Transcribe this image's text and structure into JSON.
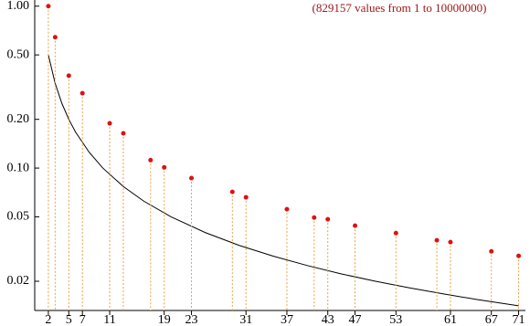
{
  "chart_data": {
    "type": "scatter",
    "annotation": "(829157 values from 1 to 10000000)",
    "log_y": true,
    "x": [
      2,
      3,
      5,
      7,
      11,
      13,
      17,
      19,
      23,
      29,
      31,
      37,
      41,
      43,
      47,
      53,
      59,
      61,
      67,
      71
    ],
    "values": [
      1.0,
      0.643,
      0.372,
      0.29,
      0.189,
      0.164,
      0.112,
      0.101,
      0.0867,
      0.0713,
      0.066,
      0.0557,
      0.0495,
      0.0483,
      0.0441,
      0.0397,
      0.0358,
      0.0349,
      0.0306,
      0.0287
    ],
    "color": "#e01010",
    "stem_color": "#f0a040",
    "curve": {
      "x": [
        2,
        3,
        4,
        5,
        6,
        8,
        10,
        13,
        16,
        20,
        25,
        30,
        35,
        40,
        45,
        50,
        55,
        60,
        65,
        71
      ],
      "values": [
        0.5,
        0.3333,
        0.25,
        0.2,
        0.1667,
        0.125,
        0.1,
        0.0769,
        0.0625,
        0.05,
        0.04,
        0.0333,
        0.0286,
        0.025,
        0.0222,
        0.02,
        0.0182,
        0.0167,
        0.0154,
        0.0141
      ],
      "color": "#000000"
    },
    "xlim": [
      0,
      72
    ],
    "ylim": [
      0.0132,
      1.05
    ],
    "xticks": [
      2,
      5,
      7,
      11,
      19,
      23,
      31,
      37,
      43,
      47,
      53,
      61,
      67,
      71
    ],
    "yticks": [
      {
        "value": 1,
        "label": "1.00"
      },
      {
        "value": 0.5,
        "label": "0.50"
      },
      {
        "value": 0.2,
        "label": "0.20"
      },
      {
        "value": 0.1,
        "label": "0.10"
      },
      0.05,
      0.02
    ]
  }
}
